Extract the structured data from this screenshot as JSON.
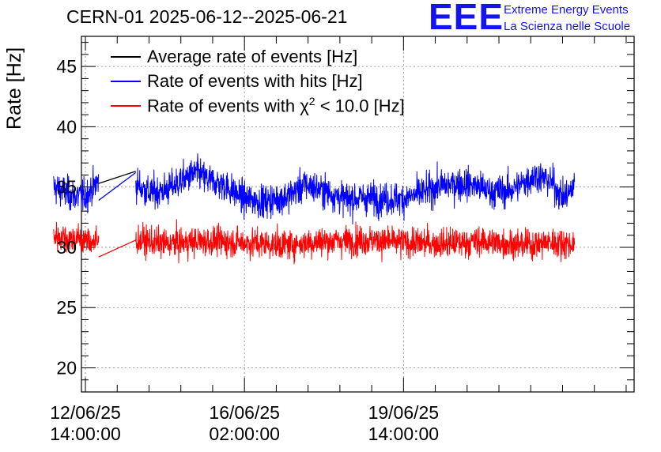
{
  "header": {
    "title": "CERN-01 2025-06-12--2025-06-21",
    "logo_mark": "EEE",
    "logo_line1": "Extreme Energy Events",
    "logo_line2": "La Scienza nelle Scuole"
  },
  "chart_data": {
    "type": "line",
    "title": "CERN-01 2025-06-12--2025-06-21",
    "xlabel": "",
    "ylabel": "Rate [Hz]",
    "xlim_hours": [
      -1.5,
      207.0
    ],
    "ylim": [
      18,
      47.5
    ],
    "yticks": [
      20,
      25,
      30,
      35,
      40,
      45
    ],
    "ytick_labels": [
      "20",
      "25",
      "30",
      "35",
      "40",
      "45"
    ],
    "xticks_hours": [
      0,
      60,
      120
    ],
    "xtick_labels": [
      [
        "12/06/25",
        "14:00:00"
      ],
      [
        "16/06/25",
        "02:00:00"
      ],
      [
        "19/06/25",
        "14:00:00"
      ]
    ],
    "x_minor_step_hours": 12,
    "grid": true,
    "legend_position": "top-left",
    "x_unit": "hours since 12/06/25 14:00:00",
    "gap": [
      5.0,
      19.0
    ],
    "series": [
      {
        "name": "Average rate of events [Hz]",
        "color": "#000000",
        "noise": 0,
        "segments": [
          {
            "x": [
              5.0,
              19.0
            ],
            "y": [
              35.3,
              36.3
            ]
          }
        ]
      },
      {
        "name": "Rate of events with hits [Hz]",
        "color": "#0000ff",
        "noise": 1.05,
        "segments": [
          {
            "x": [
              -12.0,
              -5,
              0,
              5.0
            ],
            "y": [
              35.0,
              34.3,
              34.2,
              35.5
            ]
          },
          {
            "x": [
              5.0,
              19.0
            ],
            "y": [
              33.9,
              36.2
            ]
          },
          {
            "x": [
              19.0,
              24,
              31,
              36,
              42,
              46,
              52,
              60,
              68,
              76,
              83,
              91,
              98,
              105,
              112,
              120,
              127,
              134,
              141,
              146,
              153,
              160,
              165,
              170,
              176,
              180,
              183,
              184.5
            ],
            "y": [
              35.3,
              34.5,
              34.8,
              35.5,
              36.2,
              35.6,
              35.2,
              34.0,
              33.8,
              34.2,
              35.2,
              34.6,
              34.0,
              34.1,
              34.0,
              34.0,
              34.5,
              35.1,
              35.3,
              35.2,
              34.6,
              34.7,
              35.3,
              36.0,
              35.4,
              34.1,
              34.6,
              35.3
            ]
          }
        ]
      },
      {
        "name": "Rate of events with χ² < 10.0 [Hz]",
        "label_html_parts": [
          "Rate of events with ",
          "χ",
          "2",
          " < 10.0 [Hz]"
        ],
        "color": "#ff0000",
        "noise": 0.95,
        "segments": [
          {
            "x": [
              -12.0,
              -5,
              0,
              5.0
            ],
            "y": [
              31.0,
              30.7,
              30.6,
              30.4
            ]
          },
          {
            "x": [
              5.0,
              19.0
            ],
            "y": [
              29.2,
              30.6
            ]
          },
          {
            "x": [
              19.0,
              30,
              45,
              60,
              75,
              90,
              105,
              120,
              135,
              150,
              165,
              175,
              184.5
            ],
            "y": [
              30.6,
              30.3,
              30.5,
              30.4,
              30.2,
              30.5,
              30.6,
              30.4,
              30.3,
              30.5,
              30.2,
              30.4,
              30.3
            ]
          }
        ]
      }
    ]
  }
}
